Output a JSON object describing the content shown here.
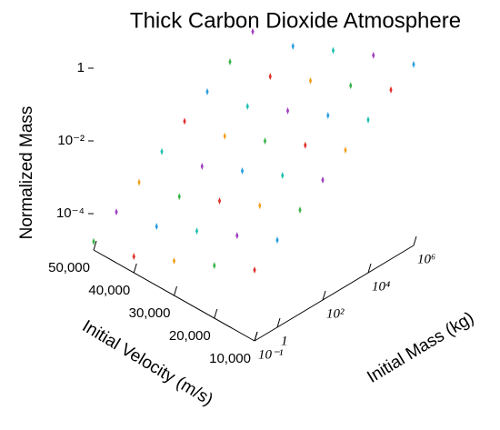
{
  "chart_data": {
    "type": "scatter3d",
    "title": "Thick Carbon Dioxide Atmosphere",
    "xlabel": "Initial Mass (kg)",
    "ylabel": "Initial Velocity (m/s)",
    "zlabel": "Normalized Mass",
    "log_x": true,
    "log_z": true,
    "xlim": [
      0.1,
      1000000
    ],
    "ylim": [
      10000,
      50000
    ],
    "zlim": [
      1e-05,
      1
    ],
    "xticks": [
      {
        "value": 0.1,
        "label": "10⁻¹"
      },
      1,
      {
        "value": 100,
        "label": "10²"
      },
      {
        "value": 10000,
        "label": "10⁴"
      },
      {
        "value": 1000000,
        "label": "10⁶"
      }
    ],
    "yticks": [
      {
        "value": 10000,
        "label": "10,000"
      },
      {
        "value": 20000,
        "label": "20,000"
      },
      {
        "value": 30000,
        "label": "30,000"
      },
      {
        "value": 40000,
        "label": "40,000"
      },
      {
        "value": 50000,
        "label": "50,000"
      }
    ],
    "zticks": [
      1,
      {
        "value": 0.01,
        "label": "10⁻²"
      },
      {
        "value": 0.0001,
        "label": "10⁻⁴"
      }
    ],
    "colors": [
      "#e0302a",
      "#2a9ee0",
      "#3bb54a",
      "#a040c0",
      "#f0a020",
      "#20c0b0"
    ],
    "series": [
      {
        "x": [
          0.1,
          1,
          10,
          100,
          1000,
          10000,
          100000,
          1000000
        ],
        "y": [
          10000,
          10000,
          10000,
          10000,
          10000,
          10000,
          10000,
          10000
        ],
        "z": [
          0.00089,
          0.0025,
          0.0071,
          0.02,
          0.056,
          0.16,
          0.45,
          0.95
        ]
      },
      {
        "x": [
          0.1,
          1,
          10,
          100,
          1000,
          10000,
          100000,
          1000000
        ],
        "y": [
          20000,
          20000,
          20000,
          20000,
          20000,
          20000,
          20000,
          20000
        ],
        "z": [
          0.00028,
          0.00079,
          0.0022,
          0.0063,
          0.018,
          0.05,
          0.14,
          0.4
        ]
      },
      {
        "x": [
          0.1,
          1,
          10,
          100,
          1000,
          10000,
          100000,
          1000000
        ],
        "y": [
          30000,
          30000,
          30000,
          30000,
          30000,
          30000,
          30000,
          30000
        ],
        "z": [
          8.9e-05,
          0.00025,
          0.00071,
          0.002,
          0.0056,
          0.016,
          0.045,
          0.13
        ]
      },
      {
        "x": [
          0.1,
          1,
          10,
          100,
          1000,
          10000,
          100000,
          1000000
        ],
        "y": [
          40000,
          40000,
          40000,
          40000,
          40000,
          40000,
          40000,
          40000
        ],
        "z": [
          2.8e-05,
          7.9e-05,
          0.00022,
          0.00063,
          0.0018,
          0.005,
          0.014,
          0.04
        ]
      },
      {
        "x": [
          0.1,
          1,
          10,
          100,
          1000,
          10000,
          100000,
          1000000
        ],
        "y": [
          50000,
          50000,
          50000,
          50000,
          50000,
          50000,
          50000,
          50000
        ],
        "z": [
          1.7e-05,
          4.7e-05,
          0.00013,
          0.00038,
          0.0011,
          0.003,
          0.0084,
          0.024
        ]
      }
    ]
  }
}
